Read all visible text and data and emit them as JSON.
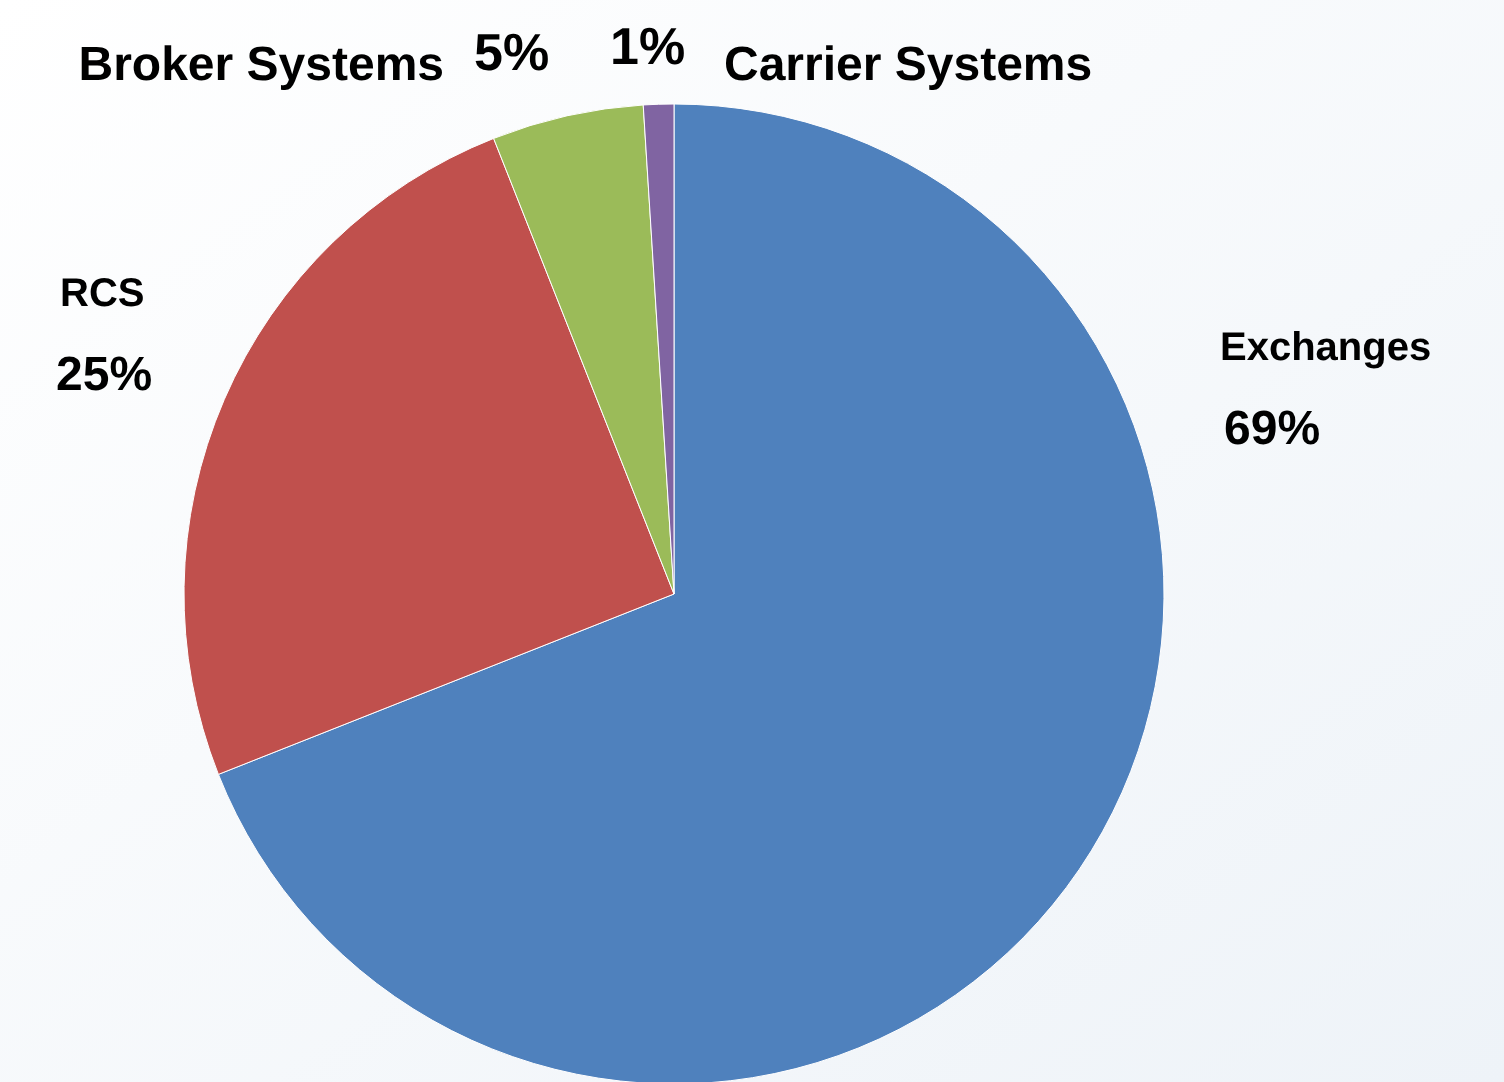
{
  "chart_data": {
    "type": "pie",
    "categories": [
      "Exchanges",
      "RCS",
      "Broker Systems",
      "Carrier Systems"
    ],
    "values": [
      69,
      25,
      5,
      1
    ],
    "colors": [
      "#4f81bd",
      "#c0504d",
      "#9bbb59",
      "#8064a2"
    ],
    "value_labels": [
      "69%",
      "25%",
      "5%",
      "1%"
    ]
  }
}
